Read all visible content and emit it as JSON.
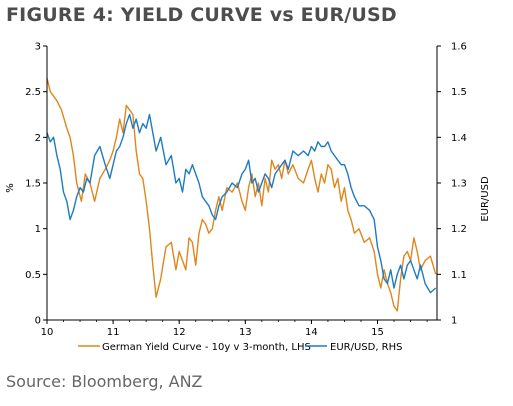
{
  "figure_title": "FIGURE 4: YIELD CURVE vs EUR/USD",
  "source": "Source: Bloomberg, ANZ",
  "colors": {
    "orange": "#E0861B",
    "blue": "#1F7BC1",
    "axis": "#000000"
  },
  "chart_data": {
    "type": "line",
    "title": "",
    "xlabel": "",
    "ylabel": "%",
    "ylabel_right": "EUR/USD",
    "x_ticks": [
      "10",
      "11",
      "12",
      "13",
      "14",
      "15"
    ],
    "y_left_ticks": [
      "0",
      "0.5",
      "1",
      "1.5",
      "2",
      "2.5",
      "3"
    ],
    "y_right_ticks": [
      "1",
      "1.1",
      "1.2",
      "1.3",
      "1.4",
      "1.5",
      "1.6"
    ],
    "xlim": [
      2010,
      2015.9
    ],
    "ylim_left": [
      0,
      3
    ],
    "ylim_right": [
      1.0,
      1.6
    ],
    "legend_position": "bottom",
    "series": [
      {
        "name": "German Yield Curve - 10y v 3-month, LHS",
        "axis": "left",
        "color": "#E0861B",
        "x": [
          2010.0,
          2010.05,
          2010.1,
          2010.15,
          2010.22,
          2010.3,
          2010.35,
          2010.4,
          2010.45,
          2010.52,
          2010.58,
          2010.65,
          2010.72,
          2010.8,
          2010.88,
          2010.95,
          2011.0,
          2011.05,
          2011.1,
          2011.15,
          2011.2,
          2011.25,
          2011.3,
          2011.35,
          2011.4,
          2011.45,
          2011.5,
          2011.55,
          2011.6,
          2011.65,
          2011.72,
          2011.8,
          2011.88,
          2011.95,
          2012.0,
          2012.05,
          2012.1,
          2012.15,
          2012.2,
          2012.25,
          2012.3,
          2012.35,
          2012.4,
          2012.45,
          2012.5,
          2012.55,
          2012.6,
          2012.65,
          2012.72,
          2012.8,
          2012.88,
          2012.95,
          2013.0,
          2013.05,
          2013.1,
          2013.15,
          2013.2,
          2013.25,
          2013.3,
          2013.35,
          2013.4,
          2013.45,
          2013.5,
          2013.55,
          2013.6,
          2013.65,
          2013.72,
          2013.8,
          2013.88,
          2013.95,
          2014.0,
          2014.05,
          2014.1,
          2014.15,
          2014.2,
          2014.25,
          2014.3,
          2014.35,
          2014.4,
          2014.45,
          2014.5,
          2014.55,
          2014.6,
          2014.65,
          2014.72,
          2014.8,
          2014.88,
          2014.95,
          2015.0,
          2015.05,
          2015.1,
          2015.15,
          2015.2,
          2015.25,
          2015.3,
          2015.35,
          2015.4,
          2015.45,
          2015.5,
          2015.55,
          2015.6,
          2015.65,
          2015.72,
          2015.8,
          2015.88
        ],
        "values": [
          2.65,
          2.5,
          2.45,
          2.4,
          2.3,
          2.1,
          2.0,
          1.8,
          1.5,
          1.3,
          1.6,
          1.5,
          1.3,
          1.55,
          1.65,
          1.75,
          1.85,
          2.0,
          2.2,
          2.05,
          2.35,
          2.3,
          2.25,
          1.85,
          1.6,
          1.55,
          1.3,
          1.0,
          0.6,
          0.25,
          0.45,
          0.8,
          0.85,
          0.55,
          0.75,
          0.65,
          0.55,
          0.9,
          0.85,
          0.6,
          0.95,
          1.1,
          1.05,
          0.95,
          1.0,
          1.2,
          1.35,
          1.2,
          1.45,
          1.4,
          1.5,
          1.3,
          1.2,
          1.45,
          1.6,
          1.35,
          1.5,
          1.25,
          1.55,
          1.4,
          1.75,
          1.65,
          1.7,
          1.55,
          1.75,
          1.6,
          1.7,
          1.55,
          1.5,
          1.65,
          1.75,
          1.55,
          1.4,
          1.6,
          1.5,
          1.7,
          1.65,
          1.45,
          1.55,
          1.3,
          1.45,
          1.2,
          1.1,
          0.95,
          1.0,
          0.85,
          0.9,
          0.75,
          0.5,
          0.35,
          0.55,
          0.4,
          0.3,
          0.15,
          0.1,
          0.45,
          0.7,
          0.75,
          0.65,
          0.9,
          0.75,
          0.55,
          0.65,
          0.7,
          0.5
        ]
      },
      {
        "name": "EUR/USD, RHS",
        "axis": "right",
        "color": "#1F7BC1",
        "x": [
          2010.0,
          2010.05,
          2010.1,
          2010.15,
          2010.2,
          2010.25,
          2010.3,
          2010.35,
          2010.4,
          2010.45,
          2010.5,
          2010.55,
          2010.6,
          2010.65,
          2010.72,
          2010.8,
          2010.88,
          2010.95,
          2011.0,
          2011.05,
          2011.1,
          2011.15,
          2011.2,
          2011.25,
          2011.3,
          2011.35,
          2011.4,
          2011.45,
          2011.5,
          2011.55,
          2011.6,
          2011.65,
          2011.72,
          2011.8,
          2011.88,
          2011.95,
          2012.0,
          2012.05,
          2012.1,
          2012.15,
          2012.2,
          2012.25,
          2012.3,
          2012.35,
          2012.4,
          2012.45,
          2012.5,
          2012.55,
          2012.6,
          2012.65,
          2012.72,
          2012.8,
          2012.88,
          2012.95,
          2013.0,
          2013.05,
          2013.1,
          2013.15,
          2013.2,
          2013.25,
          2013.3,
          2013.35,
          2013.4,
          2013.45,
          2013.5,
          2013.55,
          2013.6,
          2013.65,
          2013.72,
          2013.8,
          2013.88,
          2013.95,
          2014.0,
          2014.05,
          2014.1,
          2014.15,
          2014.2,
          2014.25,
          2014.3,
          2014.35,
          2014.4,
          2014.45,
          2014.5,
          2014.55,
          2014.6,
          2014.65,
          2014.72,
          2014.8,
          2014.88,
          2014.95,
          2015.0,
          2015.05,
          2015.1,
          2015.15,
          2015.2,
          2015.25,
          2015.3,
          2015.35,
          2015.4,
          2015.45,
          2015.5,
          2015.55,
          2015.6,
          2015.65,
          2015.72,
          2015.8,
          2015.88
        ],
        "values": [
          1.41,
          1.39,
          1.4,
          1.36,
          1.33,
          1.28,
          1.26,
          1.22,
          1.24,
          1.27,
          1.29,
          1.28,
          1.31,
          1.3,
          1.36,
          1.38,
          1.34,
          1.31,
          1.34,
          1.37,
          1.38,
          1.4,
          1.43,
          1.45,
          1.42,
          1.44,
          1.41,
          1.43,
          1.42,
          1.45,
          1.41,
          1.37,
          1.4,
          1.34,
          1.36,
          1.3,
          1.31,
          1.28,
          1.33,
          1.32,
          1.34,
          1.32,
          1.3,
          1.27,
          1.26,
          1.25,
          1.23,
          1.22,
          1.25,
          1.27,
          1.28,
          1.3,
          1.29,
          1.32,
          1.33,
          1.35,
          1.3,
          1.31,
          1.28,
          1.3,
          1.32,
          1.31,
          1.29,
          1.32,
          1.33,
          1.34,
          1.35,
          1.33,
          1.37,
          1.36,
          1.37,
          1.36,
          1.38,
          1.37,
          1.39,
          1.38,
          1.38,
          1.39,
          1.37,
          1.36,
          1.35,
          1.34,
          1.34,
          1.32,
          1.29,
          1.27,
          1.25,
          1.25,
          1.24,
          1.22,
          1.16,
          1.13,
          1.09,
          1.08,
          1.11,
          1.07,
          1.1,
          1.12,
          1.09,
          1.12,
          1.13,
          1.11,
          1.09,
          1.12,
          1.08,
          1.06,
          1.07
        ]
      }
    ]
  }
}
